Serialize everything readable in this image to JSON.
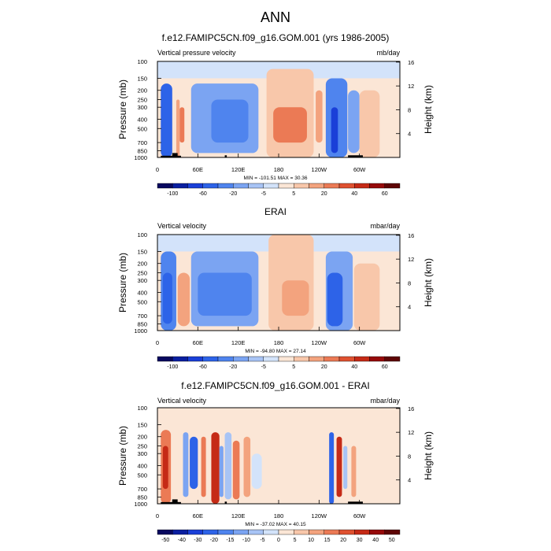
{
  "main_title": "ANN",
  "chart_data": [
    {
      "type": "heatmap",
      "title": "f.e12.FAMIPC5CN.f09_g16.GOM.001 (yrs 1986-2005)",
      "left_label": "Vertical pressure velocity",
      "units": "mb/day",
      "ylabel": "Pressure (mb)",
      "ylabel_right": "Height (km)",
      "pressure_ticks": [
        "100",
        "150",
        "200",
        "250",
        "300",
        "400",
        "500",
        "700",
        "850",
        "1000"
      ],
      "height_ticks": [
        "16",
        "12",
        "8",
        "4"
      ],
      "x_ticks": [
        "0",
        "60E",
        "120E",
        "180",
        "120W",
        "60W"
      ],
      "minmax_text": "MIN = -101.51   MAX = 30.36",
      "colorbar_labels": [
        "-100",
        "-60",
        "-20",
        "-5",
        "5",
        "20",
        "40",
        "60"
      ],
      "colorbar_levels": [
        -120,
        -100,
        -80,
        -60,
        -40,
        -20,
        -10,
        -5,
        0,
        5,
        10,
        20,
        30,
        40,
        50,
        60,
        80
      ],
      "cells": [
        {
          "lon_start": 5,
          "lon_end": 22,
          "p_top": 170,
          "p_bot": 1000,
          "value": -60
        },
        {
          "lon_start": 28,
          "lon_end": 33,
          "p_top": 250,
          "p_bot": 1000,
          "value": 10
        },
        {
          "lon_start": 33,
          "lon_end": 40,
          "p_top": 300,
          "p_bot": 700,
          "value": 20
        },
        {
          "lon_start": 50,
          "lon_end": 150,
          "p_top": 170,
          "p_bot": 900,
          "value": -20
        },
        {
          "lon_start": 80,
          "lon_end": 135,
          "p_top": 250,
          "p_bot": 700,
          "value": -40
        },
        {
          "lon_start": 162,
          "lon_end": 232,
          "p_top": 120,
          "p_bot": 1000,
          "value": 5
        },
        {
          "lon_start": 172,
          "lon_end": 222,
          "p_top": 300,
          "p_bot": 700,
          "value": 20
        },
        {
          "lon_start": 235,
          "lon_end": 245,
          "p_top": 200,
          "p_bot": 700,
          "value": 10
        },
        {
          "lon_start": 250,
          "lon_end": 282,
          "p_top": 150,
          "p_bot": 1000,
          "value": -40
        },
        {
          "lon_start": 258,
          "lon_end": 268,
          "p_top": 300,
          "p_bot": 900,
          "value": -80
        },
        {
          "lon_start": 283,
          "lon_end": 300,
          "p_top": 200,
          "p_bot": 900,
          "value": -20
        },
        {
          "lon_start": 300,
          "lon_end": 330,
          "p_top": 200,
          "p_bot": 1000,
          "value": 5
        }
      ],
      "terrain": [
        {
          "lon_start": 5,
          "lon_end": 35,
          "p_top": 960
        },
        {
          "lon_start": 22,
          "lon_end": 30,
          "p_top": 900
        },
        {
          "lon_start": 100,
          "lon_end": 103,
          "p_top": 950
        },
        {
          "lon_start": 283,
          "lon_end": 305,
          "p_top": 950
        }
      ]
    },
    {
      "type": "heatmap",
      "title": "ERAI",
      "left_label": "Vertical velocity",
      "units": "mbar/day",
      "ylabel": "Pressure (mb)",
      "ylabel_right": "Height (km)",
      "pressure_ticks": [
        "100",
        "150",
        "200",
        "250",
        "300",
        "400",
        "500",
        "700",
        "850",
        "1000"
      ],
      "height_ticks": [
        "16",
        "12",
        "8",
        "4"
      ],
      "x_ticks": [
        "0",
        "60E",
        "120E",
        "180",
        "120W",
        "60W"
      ],
      "minmax_text": "MIN = -94.80   MAX = 27.14",
      "colorbar_labels": [
        "-100",
        "-60",
        "-20",
        "-5",
        "5",
        "20",
        "40",
        "60"
      ],
      "colorbar_levels": [
        -120,
        -100,
        -80,
        -60,
        -40,
        -20,
        -10,
        -5,
        0,
        5,
        10,
        20,
        30,
        40,
        50,
        60,
        80
      ],
      "cells": [
        {
          "lon_start": 5,
          "lon_end": 28,
          "p_top": 150,
          "p_bot": 1000,
          "value": -40
        },
        {
          "lon_start": 8,
          "lon_end": 22,
          "p_top": 250,
          "p_bot": 850,
          "value": -60
        },
        {
          "lon_start": 30,
          "lon_end": 48,
          "p_top": 250,
          "p_bot": 900,
          "value": 10
        },
        {
          "lon_start": 50,
          "lon_end": 150,
          "p_top": 150,
          "p_bot": 900,
          "value": -20
        },
        {
          "lon_start": 60,
          "lon_end": 140,
          "p_top": 250,
          "p_bot": 700,
          "value": -40
        },
        {
          "lon_start": 165,
          "lon_end": 232,
          "p_top": 100,
          "p_bot": 1000,
          "value": 5
        },
        {
          "lon_start": 185,
          "lon_end": 225,
          "p_top": 300,
          "p_bot": 700,
          "value": 10
        },
        {
          "lon_start": 250,
          "lon_end": 290,
          "p_top": 150,
          "p_bot": 1000,
          "value": -20
        },
        {
          "lon_start": 252,
          "lon_end": 275,
          "p_top": 250,
          "p_bot": 900,
          "value": -60
        },
        {
          "lon_start": 292,
          "lon_end": 330,
          "p_top": 200,
          "p_bot": 1000,
          "value": 5
        }
      ],
      "terrain": []
    },
    {
      "type": "heatmap",
      "title": "f.e12.FAMIPC5CN.f09_g16.GOM.001 - ERAI",
      "left_label": "Vertical velocity",
      "units": "mbar/day",
      "ylabel": "Pressure (mb)",
      "ylabel_right": "Height (km)",
      "pressure_ticks": [
        "100",
        "150",
        "200",
        "250",
        "300",
        "400",
        "500",
        "700",
        "850",
        "1000"
      ],
      "height_ticks": [
        "16",
        "12",
        "8",
        "4"
      ],
      "x_ticks": [
        "0",
        "60E",
        "120E",
        "180",
        "120W",
        "60W"
      ],
      "minmax_text": "MIN = -37.02   MAX = 40.15",
      "colorbar_labels": [
        "-50",
        "-40",
        "-30",
        "-20",
        "-15",
        "-10",
        "-5",
        "0",
        "5",
        "10",
        "15",
        "20",
        "30",
        "40",
        "50"
      ],
      "colorbar_levels": [
        -60,
        -50,
        -40,
        -30,
        -20,
        -15,
        -10,
        -5,
        0,
        5,
        10,
        15,
        20,
        30,
        40,
        50,
        60
      ],
      "cells": [
        {
          "lon_start": 5,
          "lon_end": 20,
          "p_top": 170,
          "p_bot": 1000,
          "value": 15
        },
        {
          "lon_start": 8,
          "lon_end": 16,
          "p_top": 250,
          "p_bot": 700,
          "value": 30
        },
        {
          "lon_start": 38,
          "lon_end": 46,
          "p_top": 180,
          "p_bot": 850,
          "value": -15
        },
        {
          "lon_start": 48,
          "lon_end": 60,
          "p_top": 200,
          "p_bot": 700,
          "value": -30
        },
        {
          "lon_start": 65,
          "lon_end": 72,
          "p_top": 200,
          "p_bot": 850,
          "value": 15
        },
        {
          "lon_start": 80,
          "lon_end": 92,
          "p_top": 180,
          "p_bot": 1000,
          "value": 30
        },
        {
          "lon_start": 92,
          "lon_end": 98,
          "p_top": 250,
          "p_bot": 850,
          "value": -15
        },
        {
          "lon_start": 100,
          "lon_end": 110,
          "p_top": 180,
          "p_bot": 900,
          "value": -10
        },
        {
          "lon_start": 112,
          "lon_end": 122,
          "p_top": 220,
          "p_bot": 900,
          "value": 15
        },
        {
          "lon_start": 128,
          "lon_end": 138,
          "p_top": 200,
          "p_bot": 850,
          "value": 10
        },
        {
          "lon_start": 140,
          "lon_end": 155,
          "p_top": 300,
          "p_bot": 700,
          "value": -5
        },
        {
          "lon_start": 255,
          "lon_end": 262,
          "p_top": 180,
          "p_bot": 1000,
          "value": -30
        },
        {
          "lon_start": 266,
          "lon_end": 274,
          "p_top": 200,
          "p_bot": 850,
          "value": 30
        },
        {
          "lon_start": 276,
          "lon_end": 282,
          "p_top": 250,
          "p_bot": 700,
          "value": -10
        },
        {
          "lon_start": 288,
          "lon_end": 295,
          "p_top": 250,
          "p_bot": 850,
          "value": 10
        }
      ],
      "terrain": [
        {
          "lon_start": 5,
          "lon_end": 35,
          "p_top": 960
        },
        {
          "lon_start": 22,
          "lon_end": 30,
          "p_top": 900
        },
        {
          "lon_start": 100,
          "lon_end": 103,
          "p_top": 950
        },
        {
          "lon_start": 283,
          "lon_end": 305,
          "p_top": 950
        }
      ]
    }
  ],
  "colors": {
    "blue_ramp": [
      "#08085f",
      "#0a1fa0",
      "#1a3fd8",
      "#2d63e8",
      "#4f84ee",
      "#7ba4f2",
      "#a8c4f5",
      "#d3e3fa"
    ],
    "red_ramp": [
      "#fbe6d6",
      "#f8c7aa",
      "#f3a37e",
      "#eb7a55",
      "#df5130",
      "#c52a16",
      "#960a0a",
      "#5e0505"
    ]
  }
}
